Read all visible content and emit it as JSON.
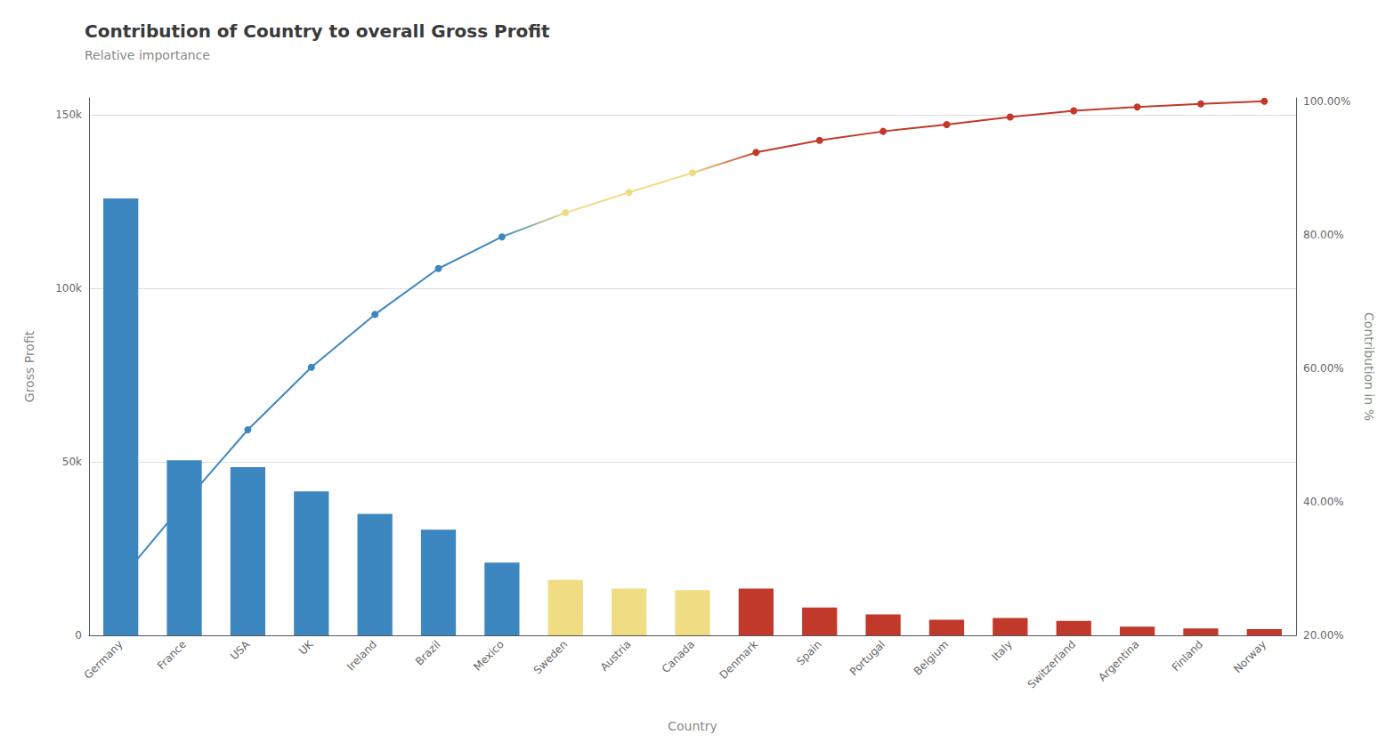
{
  "chart_data": {
    "type": "bar",
    "title": "Contribution of Country to overall Gross Profit",
    "subtitle": "Relative importance",
    "xlabel": "Country",
    "ylabel": "Gross Profit",
    "y2label": "Contribution in %",
    "categories": [
      "Germany",
      "France",
      "USA",
      "UK",
      "Ireland",
      "Brazil",
      "Mexico",
      "Sweden",
      "Austria",
      "Canada",
      "Denmark",
      "Spain",
      "Portugal",
      "Belgium",
      "Italy",
      "Switzerland",
      "Argentina",
      "Finland",
      "Norway"
    ],
    "series": [
      {
        "type": "bar",
        "colors": [
          "#3d87c0",
          "#3d87c0",
          "#3d87c0",
          "#3d87c0",
          "#3d87c0",
          "#3d87c0",
          "#3d87c0",
          "#f0dc82",
          "#f0dc82",
          "#f0dc82",
          "#c0392b",
          "#c0392b",
          "#c0392b",
          "#c0392b",
          "#c0392b",
          "#c0392b",
          "#c0392b",
          "#c0392b",
          "#c0392b"
        ],
        "values": [
          126000,
          50500,
          48500,
          41500,
          35000,
          30500,
          21000,
          16000,
          13500,
          13000,
          13500,
          8000,
          6000,
          4500,
          5000,
          4200,
          2500,
          2000,
          1800
        ]
      },
      {
        "type": "line",
        "axis": "y2",
        "colors": [
          "#3d87c0",
          "#3d87c0",
          "#3d87c0",
          "#3d87c0",
          "#3d87c0",
          "#3d87c0",
          "#3d87c0",
          "#f0dc82",
          "#f0dc82",
          "#f0dc82",
          "#c0392b",
          "#c0392b",
          "#c0392b",
          "#c0392b",
          "#c0392b",
          "#c0392b",
          "#c0392b",
          "#c0392b",
          "#c0392b"
        ],
        "values": [
          0.284424,
          0.39842,
          0.507901,
          0.60158,
          0.680587,
          0.749436,
          0.79684,
          0.832957,
          0.863431,
          0.892777,
          0.923251,
          0.941309,
          0.954853,
          0.965011,
          0.976298,
          0.985779,
          0.991422,
          0.995937,
          1.0
        ]
      }
    ],
    "ylim": [
      0,
      155000
    ],
    "yticks": [
      0,
      {
        "value": 50000,
        "label": "50k"
      },
      {
        "value": 100000,
        "label": "100k"
      },
      {
        "value": 150000,
        "label": "150k"
      }
    ],
    "y2lim": [
      0.2,
      1.005
    ],
    "y2ticks": [
      {
        "value": 0.2,
        "label": "20.00%"
      },
      {
        "value": 0.4,
        "label": "40.00%"
      },
      {
        "value": 0.6,
        "label": "60.00%"
      },
      {
        "value": 0.8,
        "label": "80.00%"
      },
      {
        "value": 1.0,
        "label": "100.00%"
      }
    ],
    "grid": true
  }
}
